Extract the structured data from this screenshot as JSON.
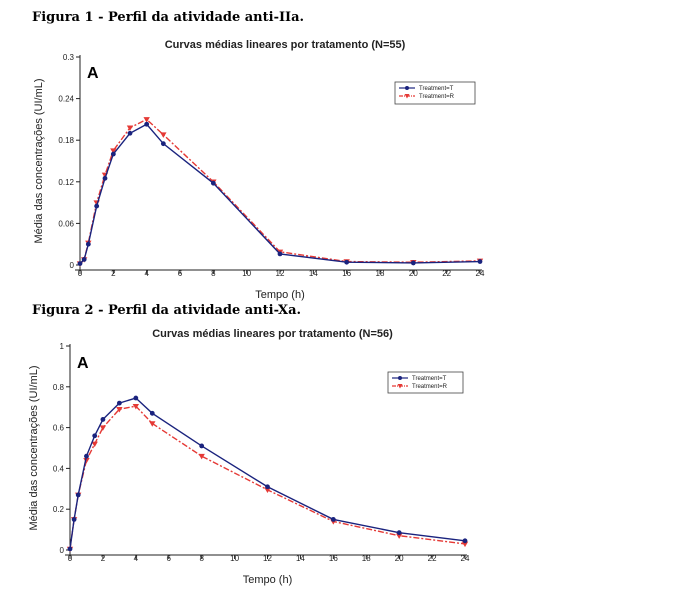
{
  "figures": [
    {
      "caption": "Figura 1 - Perfil da atividade anti-IIa."
    },
    {
      "caption": "Figura 2 - Perfil da atividade anti-Xa."
    }
  ],
  "chart_data": [
    {
      "type": "line",
      "title": "Curvas médias lineares por tratamento (N=55)",
      "panel_letter": "A",
      "xlabel": "Tempo (h)",
      "ylabel": "Média das concentrações (UI/mL)",
      "xlim": [
        0,
        24
      ],
      "ylim": [
        0,
        0.3
      ],
      "xticks": [
        0,
        2,
        4,
        6,
        8,
        10,
        12,
        14,
        16,
        18,
        20,
        22,
        24
      ],
      "yticks": [
        0,
        0.06,
        0.12,
        0.18,
        0.24,
        0.3
      ],
      "ytick_labels": [
        "0",
        "0.06",
        "0.12",
        "0.18",
        "0.24",
        "0.3"
      ],
      "legend_position": "top-right",
      "x": [
        0,
        0.25,
        0.5,
        1,
        1.5,
        2,
        3,
        4,
        5,
        8,
        12,
        16,
        20,
        24
      ],
      "series": [
        {
          "name": "Treatment=T",
          "color": "#1a237e",
          "marker": "circle",
          "line_style": "solid",
          "values": [
            0.002,
            0.008,
            0.03,
            0.085,
            0.125,
            0.16,
            0.19,
            0.203,
            0.175,
            0.118,
            0.016,
            0.004,
            0.003,
            0.005
          ]
        },
        {
          "name": "Treatment=R",
          "color": "#e53935",
          "marker": "triangle-down",
          "line_style": "dashdot",
          "values": [
            0.002,
            0.008,
            0.032,
            0.09,
            0.13,
            0.165,
            0.198,
            0.21,
            0.188,
            0.12,
            0.019,
            0.005,
            0.004,
            0.006
          ]
        }
      ]
    },
    {
      "type": "line",
      "title": "Curvas médias lineares por tratamento (N=56)",
      "panel_letter": "A",
      "xlabel": "Tempo (h)",
      "ylabel": "Média das concentrações (UI/mL)",
      "xlim": [
        0,
        24
      ],
      "ylim": [
        0,
        1
      ],
      "xticks": [
        0,
        2,
        4,
        6,
        8,
        10,
        12,
        14,
        16,
        18,
        20,
        22,
        24
      ],
      "yticks": [
        0,
        0.2,
        0.4,
        0.6,
        0.8,
        1
      ],
      "ytick_labels": [
        "0",
        "0.2",
        "0.4",
        "0.6",
        "0.8",
        "1"
      ],
      "legend_position": "top-right",
      "x": [
        0,
        0.25,
        0.5,
        1,
        1.5,
        2,
        3,
        4,
        5,
        8,
        12,
        16,
        20,
        24
      ],
      "series": [
        {
          "name": "Treatment=T",
          "color": "#1a237e",
          "marker": "circle",
          "line_style": "solid",
          "values": [
            0.005,
            0.15,
            0.27,
            0.46,
            0.56,
            0.64,
            0.72,
            0.745,
            0.67,
            0.51,
            0.31,
            0.15,
            0.085,
            0.045
          ]
        },
        {
          "name": "Treatment=R",
          "color": "#e53935",
          "marker": "triangle-down",
          "line_style": "dashdot",
          "values": [
            0.005,
            0.15,
            0.27,
            0.44,
            0.52,
            0.6,
            0.69,
            0.705,
            0.62,
            0.46,
            0.295,
            0.14,
            0.07,
            0.03
          ]
        }
      ]
    }
  ]
}
